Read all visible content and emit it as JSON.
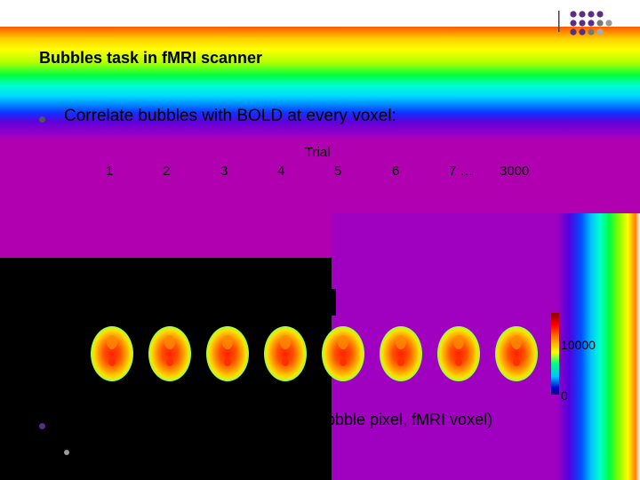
{
  "slide": {
    "title": "Bubbles task in fMRI scanner",
    "bullet_main": "Correlate bubbles with BOLD at every voxel:",
    "trial_label": "Trial",
    "trial_numbers": [
      "1",
      "2",
      "3",
      "4",
      "5",
      "6",
      "7 …",
      "3000"
    ],
    "colorbar_max_label": "10000",
    "colorbar_min_label": "0",
    "bullet_bottom_fragment": "bbble pixel, fMRI voxel)"
  },
  "colors": {
    "title": "#000000",
    "bullet_main": "#555555",
    "bullet_bottom": "#5a2e83",
    "sub_bullet": "#9a9a9a"
  },
  "icons": {
    "logo": "dot-grid-logo",
    "bullet": "round-bullet"
  }
}
